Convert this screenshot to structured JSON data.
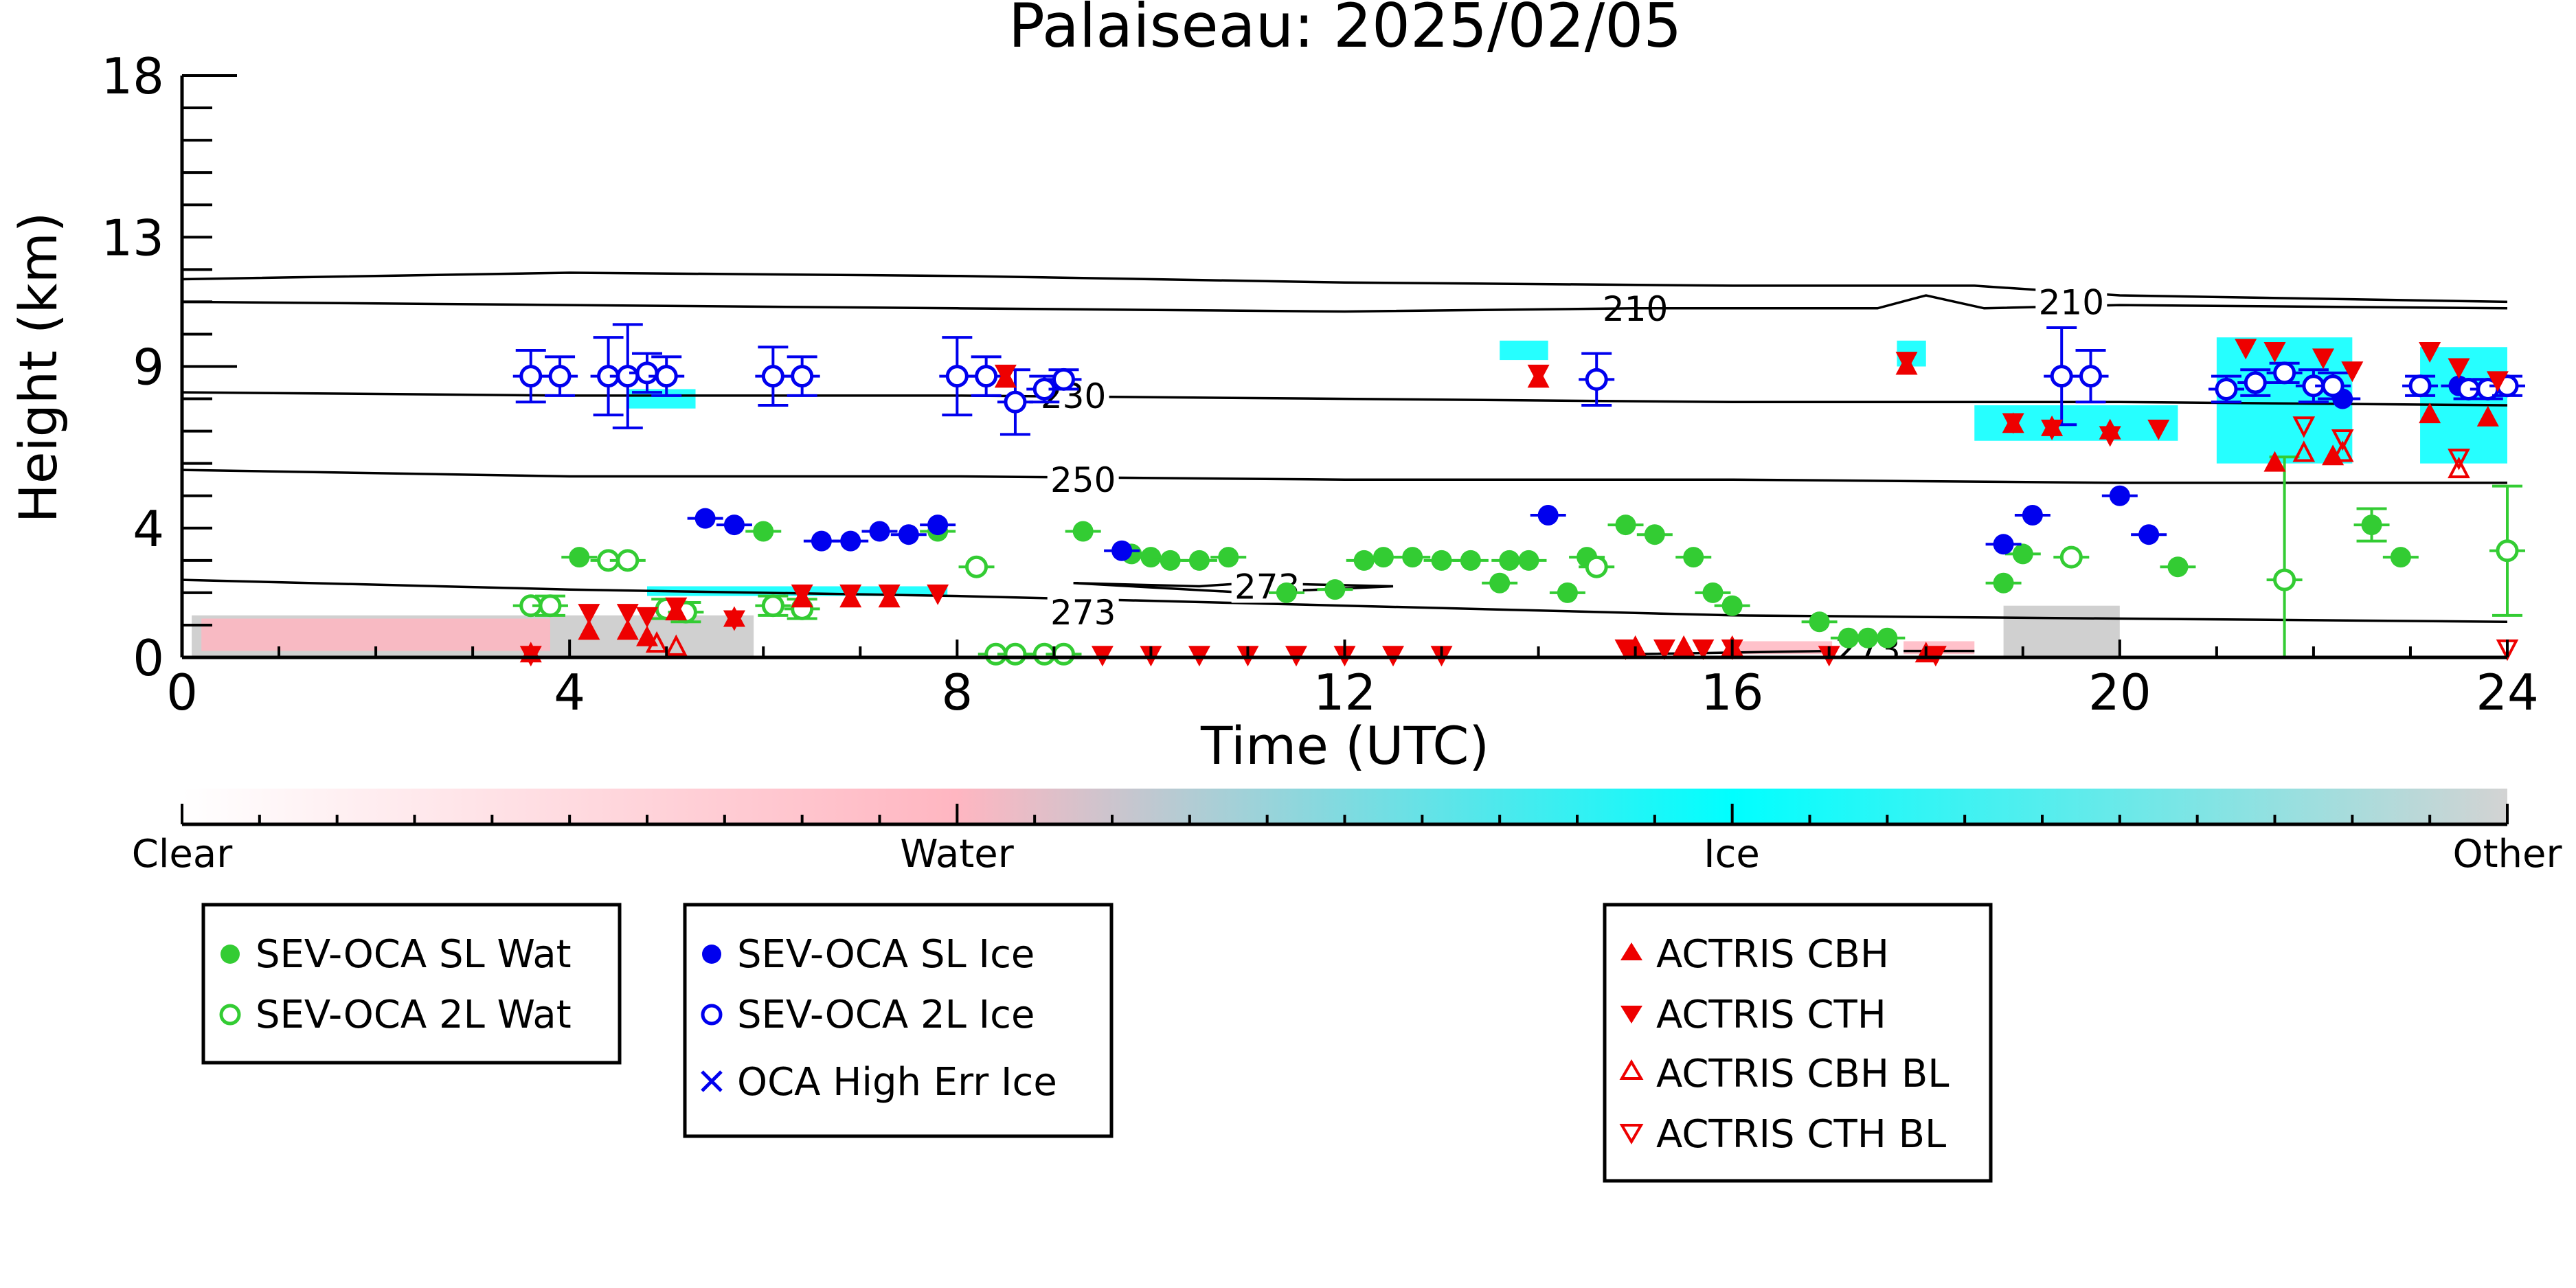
{
  "chart_data": {
    "type": "scatter",
    "title": "Palaiseau: 2025/02/05",
    "xlabel": "Time (UTC)",
    "ylabel": "Height (km)",
    "xlim": [
      0,
      24
    ],
    "ylim": [
      0,
      18
    ],
    "xticks": [
      0,
      4,
      8,
      12,
      16,
      20,
      24
    ],
    "yticks": [
      0,
      4,
      9,
      13,
      18
    ],
    "ytick_labels": [
      "0",
      "4",
      "9",
      "13",
      "18"
    ],
    "grid": false,
    "colorbar": {
      "labels": [
        "Clear",
        "Water",
        "Ice",
        "Other"
      ],
      "colors": [
        "#ffffff",
        "#ffb6c1",
        "#00ffff",
        "#d3d3d3"
      ]
    },
    "temperature_contours": [
      {
        "label": "210",
        "points": [
          [
            0,
            11.7
          ],
          [
            4,
            11.9
          ],
          [
            8,
            11.8
          ],
          [
            12,
            11.6
          ],
          [
            16,
            11.5
          ],
          [
            18.5,
            11.5
          ],
          [
            20,
            11.2
          ],
          [
            24,
            11.0
          ]
        ],
        "label_at": [
          15,
          10.8
        ]
      },
      {
        "label": "210",
        "points": [
          [
            0,
            11.0
          ],
          [
            4,
            10.9
          ],
          [
            8,
            10.8
          ],
          [
            12,
            10.7
          ],
          [
            15,
            10.8
          ],
          [
            17.5,
            10.8
          ],
          [
            18,
            11.2
          ],
          [
            18.6,
            10.8
          ],
          [
            20,
            10.9
          ],
          [
            24,
            10.8
          ]
        ],
        "label_at": [
          19.5,
          11.0
        ]
      },
      {
        "label": "230",
        "points": [
          [
            0,
            8.2
          ],
          [
            4,
            8.1
          ],
          [
            8,
            8.1
          ],
          [
            12,
            8.0
          ],
          [
            16,
            7.9
          ],
          [
            20,
            7.9
          ],
          [
            24,
            7.8
          ]
        ],
        "label_at": [
          9.2,
          8.1
        ]
      },
      {
        "label": "250",
        "points": [
          [
            0,
            5.8
          ],
          [
            4,
            5.6
          ],
          [
            8,
            5.6
          ],
          [
            12,
            5.5
          ],
          [
            16,
            5.5
          ],
          [
            20,
            5.4
          ],
          [
            24,
            5.4
          ]
        ],
        "label_at": [
          9.3,
          5.5
        ]
      },
      {
        "label": "273",
        "points": [
          [
            0,
            2.4
          ],
          [
            4,
            2.1
          ],
          [
            8,
            1.9
          ],
          [
            12,
            1.6
          ],
          [
            16,
            1.3
          ],
          [
            20,
            1.2
          ],
          [
            24,
            1.1
          ]
        ],
        "label_at": [
          9.3,
          1.4
        ]
      },
      {
        "label": "273",
        "points": [
          [
            9.2,
            2.3
          ],
          [
            10.5,
            2.2
          ],
          [
            11,
            2.3
          ],
          [
            12.5,
            2.2
          ],
          [
            11,
            2.0
          ],
          [
            9.2,
            2.3
          ]
        ],
        "label_at": [
          11.2,
          2.2
        ]
      },
      {
        "label": "273",
        "points": [
          [
            15,
            0.1
          ],
          [
            17,
            0.2
          ],
          [
            18.5,
            0.2
          ]
        ],
        "label_at": [
          17.4,
          0.25
        ]
      }
    ],
    "background_regions": [
      {
        "class": "Other",
        "color": "#c8c8c8",
        "x0": 0.1,
        "x1": 5.9,
        "y0": 0,
        "y1": 1.3
      },
      {
        "class": "Water",
        "color": "#ffb6c1",
        "x0": 0.2,
        "x1": 3.8,
        "y0": 0.2,
        "y1": 1.2
      },
      {
        "class": "Ice",
        "color": "#00ffff",
        "x0": 4.8,
        "x1": 7.9,
        "y0": 1.9,
        "y1": 2.2
      },
      {
        "class": "Other",
        "color": "#c8c8c8",
        "x0": 18.8,
        "x1": 20.0,
        "y0": 0,
        "y1": 1.6
      },
      {
        "class": "Water",
        "color": "#ffb6c1",
        "x0": 16.0,
        "x1": 18.5,
        "y0": 0.1,
        "y1": 0.5
      },
      {
        "class": "Ice",
        "color": "#00ffff",
        "x0": 18.5,
        "x1": 20.6,
        "y0": 6.7,
        "y1": 7.8
      },
      {
        "class": "Ice",
        "color": "#00ffff",
        "x0": 21.0,
        "x1": 22.4,
        "y0": 6.0,
        "y1": 9.9
      },
      {
        "class": "Ice",
        "color": "#00ffff",
        "x0": 23.1,
        "x1": 24.0,
        "y0": 6.0,
        "y1": 9.6
      },
      {
        "class": "Ice",
        "color": "#00ffff",
        "x0": 13.6,
        "x1": 14.1,
        "y0": 9.2,
        "y1": 9.8
      },
      {
        "class": "Ice",
        "color": "#00ffff",
        "x0": 4.6,
        "x1": 5.3,
        "y0": 7.7,
        "y1": 8.3
      },
      {
        "class": "Ice",
        "color": "#00ffff",
        "x0": 17.7,
        "x1": 18.0,
        "y0": 9.0,
        "y1": 9.8
      }
    ],
    "series": [
      {
        "name": "SEV-OCA SL Wat",
        "marker": "filled-circle",
        "color": "#33cc33",
        "x": [
          4.1,
          5.0,
          6.0,
          7.8,
          9.3,
          9.8,
          10.0,
          10.2,
          10.5,
          10.8,
          11.4,
          11.9,
          12.2,
          12.4,
          12.7,
          13.0,
          13.3,
          13.6,
          13.7,
          13.9,
          14.3,
          14.5,
          14.9,
          15.2,
          15.6,
          15.8,
          16.0,
          16.9,
          17.2,
          17.4,
          17.6,
          18.8,
          19.0,
          20.6,
          22.6,
          22.9
        ],
        "y": [
          3.1,
          1.5,
          3.9,
          3.9,
          3.9,
          3.2,
          3.1,
          3.0,
          3.0,
          3.1,
          2.0,
          2.1,
          3.0,
          3.1,
          3.1,
          3.0,
          3.0,
          2.3,
          3.0,
          3.0,
          2.0,
          3.1,
          4.1,
          3.8,
          3.1,
          2.0,
          1.6,
          1.1,
          0.6,
          0.6,
          0.6,
          2.3,
          3.2,
          2.8,
          4.1,
          3.1
        ],
        "yerr": [
          0,
          0,
          0,
          0,
          0,
          0,
          0,
          0,
          0,
          0,
          0,
          0,
          0,
          0,
          0,
          0,
          0,
          0,
          0,
          0,
          0,
          0,
          0,
          0,
          0,
          0,
          0,
          0,
          0,
          0,
          0,
          0,
          0,
          0,
          0.5,
          0
        ]
      },
      {
        "name": "SEV-OCA 2L Wat",
        "marker": "open-circle",
        "color": "#33cc33",
        "x": [
          3.6,
          3.8,
          4.4,
          4.6,
          5.0,
          5.2,
          6.1,
          6.4,
          8.2,
          8.4,
          8.6,
          8.9,
          9.1,
          14.6,
          19.5,
          21.7,
          24.0
        ],
        "y": [
          1.6,
          1.6,
          3.0,
          3.0,
          1.5,
          1.4,
          1.6,
          1.5,
          2.8,
          0.1,
          0.1,
          0.1,
          0.1,
          2.8,
          3.1,
          2.4,
          3.3
        ],
        "yerr": [
          0,
          0.3,
          0,
          0,
          0.3,
          0.3,
          0.3,
          0.3,
          0,
          0,
          0,
          0,
          0,
          0,
          0,
          3.8,
          2.0
        ]
      },
      {
        "name": "SEV-OCA SL Ice",
        "marker": "filled-circle",
        "color": "#0000ee",
        "x": [
          5.4,
          5.7,
          6.6,
          6.9,
          7.2,
          7.5,
          7.8,
          9.7,
          14.1,
          18.8,
          19.1,
          20.0,
          20.3,
          22.3,
          23.5
        ],
        "y": [
          4.3,
          4.1,
          3.6,
          3.6,
          3.9,
          3.8,
          4.1,
          3.3,
          4.4,
          3.5,
          4.4,
          5.0,
          3.8,
          8.0,
          8.4
        ],
        "yerr": [
          0,
          0,
          0,
          0,
          0,
          0,
          0,
          0,
          0,
          0,
          0,
          0,
          0,
          0,
          0
        ]
      },
      {
        "name": "SEV-OCA 2L Ice",
        "marker": "open-circle",
        "color": "#0000ee",
        "x": [
          3.6,
          3.9,
          4.4,
          4.6,
          4.8,
          5.0,
          6.1,
          6.4,
          8.0,
          8.3,
          8.6,
          8.9,
          9.1,
          14.6,
          19.4,
          19.7,
          21.1,
          21.4,
          21.7,
          22.0,
          22.2,
          23.1,
          23.6,
          23.8,
          24.0
        ],
        "y": [
          8.7,
          8.7,
          8.7,
          8.7,
          8.8,
          8.7,
          8.7,
          8.7,
          8.7,
          8.7,
          7.9,
          8.3,
          8.6,
          8.6,
          8.7,
          8.7,
          8.3,
          8.5,
          8.8,
          8.4,
          8.4,
          8.4,
          8.3,
          8.3,
          8.4
        ],
        "yerr": [
          0.8,
          0.6,
          1.2,
          1.6,
          0.6,
          0.6,
          0.9,
          0.6,
          1.2,
          0.6,
          1.0,
          0.4,
          0.3,
          0.8,
          1.5,
          0.8,
          0.4,
          0.4,
          0.3,
          0.5,
          0.4,
          0.3,
          0.3,
          0.3,
          0.3
        ]
      },
      {
        "name": "OCA High Err Ice",
        "marker": "x",
        "color": "#0000ee",
        "x": [],
        "y": []
      },
      {
        "name": "ACTRIS CBH",
        "marker": "filled-triangle-up",
        "color": "#ee0000",
        "x": [
          3.6,
          4.2,
          4.6,
          4.8,
          5.1,
          5.7,
          6.4,
          6.9,
          7.3,
          8.5,
          14.0,
          15.0,
          15.5,
          16.0,
          17.8,
          18.0,
          18.9,
          19.3,
          19.9,
          21.6,
          22.2,
          23.2,
          23.8
        ],
        "y": [
          0.1,
          0.8,
          0.8,
          0.6,
          1.4,
          1.2,
          1.8,
          1.8,
          1.8,
          8.6,
          8.6,
          0.3,
          0.3,
          0.3,
          9.0,
          0.1,
          7.2,
          7.1,
          7.0,
          6.0,
          6.2,
          7.5,
          7.4
        ]
      },
      {
        "name": "ACTRIS CTH",
        "marker": "filled-triangle-down",
        "color": "#ee0000",
        "x": [
          3.6,
          4.2,
          4.6,
          4.8,
          5.1,
          5.7,
          6.4,
          6.9,
          7.3,
          7.8,
          8.5,
          9.5,
          10.0,
          10.5,
          11.0,
          11.5,
          12.0,
          12.5,
          13.0,
          14.0,
          14.9,
          15.3,
          15.7,
          16.0,
          17.0,
          17.8,
          18.1,
          18.9,
          19.3,
          19.9,
          20.4,
          21.3,
          21.6,
          22.1,
          22.4,
          23.2,
          23.5,
          23.9
        ],
        "y": [
          0.1,
          1.4,
          1.4,
          1.3,
          1.6,
          1.2,
          2.0,
          2.0,
          2.0,
          2.0,
          8.8,
          0.1,
          0.1,
          0.1,
          0.1,
          0.1,
          0.1,
          0.1,
          0.1,
          8.8,
          0.3,
          0.3,
          0.3,
          0.3,
          0.1,
          9.2,
          0.1,
          7.3,
          7.1,
          6.9,
          7.1,
          9.6,
          9.5,
          9.3,
          8.9,
          9.5,
          9.0,
          8.6
        ]
      },
      {
        "name": "ACTRIS CBH BL",
        "marker": "open-triangle-up",
        "color": "#ee0000",
        "x": [
          4.9,
          5.1,
          21.9,
          22.3,
          23.5
        ],
        "y": [
          0.4,
          0.3,
          6.3,
          6.3,
          5.8
        ]
      },
      {
        "name": "ACTRIS CTH BL",
        "marker": "open-triangle-down",
        "color": "#ee0000",
        "x": [
          21.9,
          22.3,
          23.5,
          24.0
        ],
        "y": [
          7.2,
          6.8,
          6.2,
          0.3
        ]
      }
    ]
  },
  "legend": {
    "box1": [
      "SEV-OCA SL Wat",
      "SEV-OCA 2L Wat"
    ],
    "box2": [
      "SEV-OCA SL Ice",
      "SEV-OCA 2L Ice",
      "OCA High Err Ice"
    ],
    "box3": [
      "ACTRIS CBH",
      "ACTRIS CTH",
      "ACTRIS CBH BL",
      "ACTRIS CTH BL"
    ]
  }
}
